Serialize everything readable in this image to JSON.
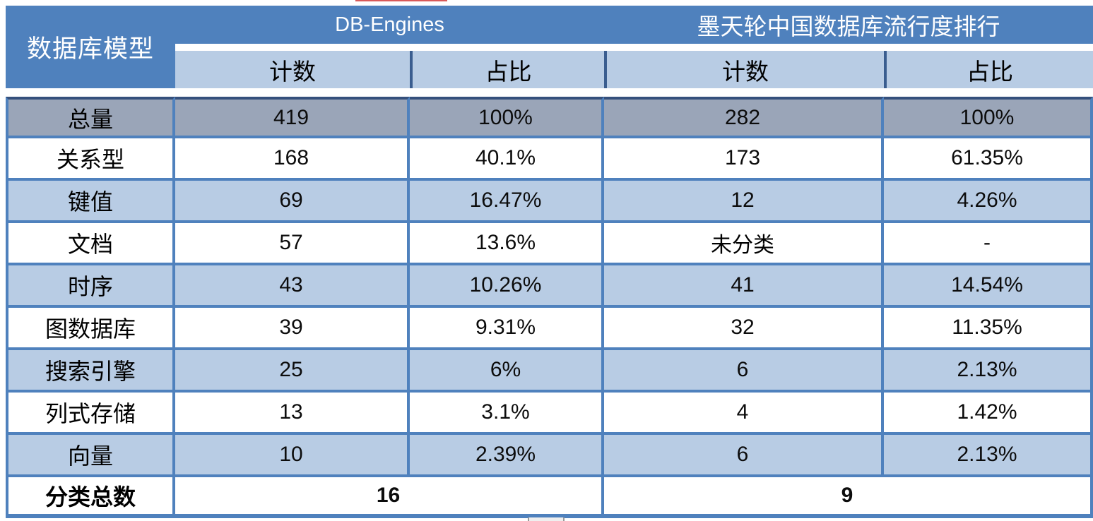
{
  "colors": {
    "header_blue": "#4f81bd",
    "light_blue": "#b8cce4",
    "total_row_gray": "#9aa5b8",
    "border_blue": "#4f81bd",
    "header_divider_dark": "#3a5d8f",
    "artifact_red": "#d85a5a"
  },
  "chart_data": {
    "type": "table",
    "header": {
      "model_col": "数据库模型",
      "left_group": "DB-Engines",
      "right_group": "墨天轮中国数据库流行度排行",
      "count_label": "计数",
      "share_label": "占比"
    },
    "total_row": {
      "label": "总量",
      "de_count": "419",
      "de_share": "100%",
      "mo_count": "282",
      "mo_share": "100%"
    },
    "rows": [
      {
        "label": "关系型",
        "de_count": "168",
        "de_share": "40.1%",
        "mo_count": "173",
        "mo_share": "61.35%"
      },
      {
        "label": "键值",
        "de_count": "69",
        "de_share": "16.47%",
        "mo_count": "12",
        "mo_share": "4.26%"
      },
      {
        "label": "文档",
        "de_count": "57",
        "de_share": "13.6%",
        "mo_count": "未分类",
        "mo_share": "-"
      },
      {
        "label": "时序",
        "de_count": "43",
        "de_share": "10.26%",
        "mo_count": "41",
        "mo_share": "14.54%"
      },
      {
        "label": "图数据库",
        "de_count": "39",
        "de_share": "9.31%",
        "mo_count": "32",
        "mo_share": "11.35%"
      },
      {
        "label": "搜索引擎",
        "de_count": "25",
        "de_share": "6%",
        "mo_count": "6",
        "mo_share": "2.13%"
      },
      {
        "label": "列式存储",
        "de_count": "13",
        "de_share": "3.1%",
        "mo_count": "4",
        "mo_share": "1.42%"
      },
      {
        "label": "向量",
        "de_count": "10",
        "de_share": "2.39%",
        "mo_count": "6",
        "mo_share": "2.13%"
      }
    ],
    "summary_row": {
      "label": "分类总数",
      "db_engines_total": "16",
      "modb_total": "9"
    }
  }
}
